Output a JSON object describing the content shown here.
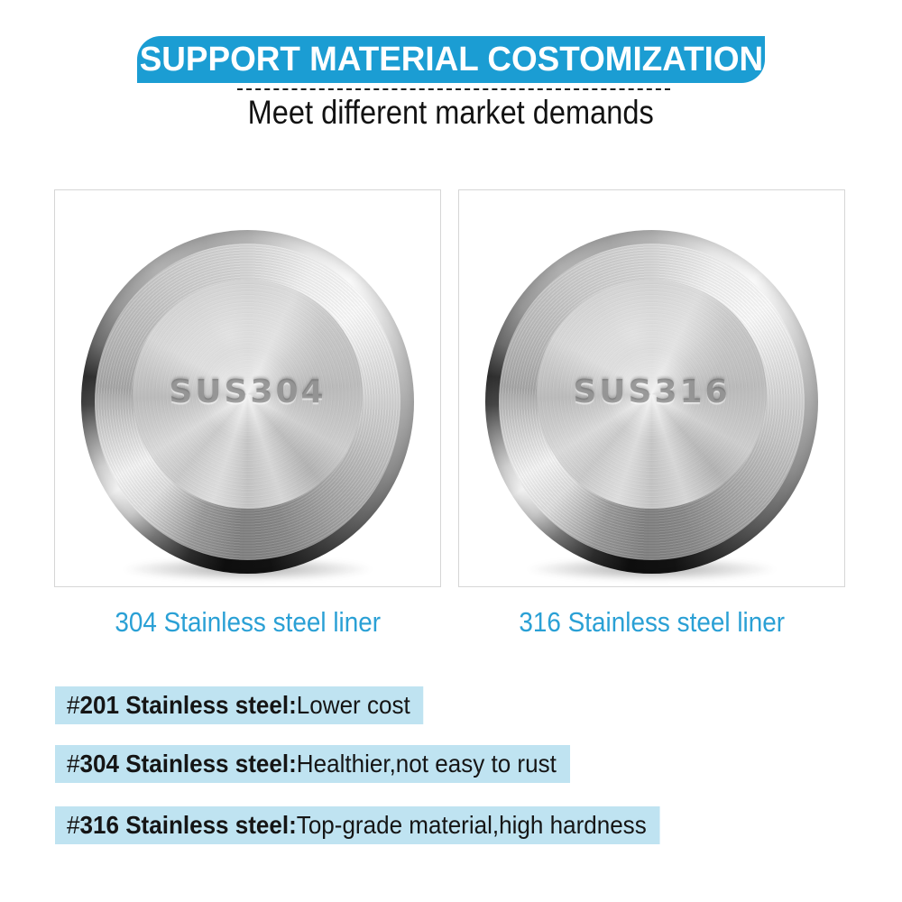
{
  "header": {
    "banner_text": "SUPPORT MATERIAL COSTOMIZATION",
    "banner_bg": "#1b9dd3",
    "banner_text_color": "#ffffff",
    "subtitle": "Meet different market demands",
    "subtitle_color": "#121212"
  },
  "products": [
    {
      "engraving": "SUS304",
      "caption": "304 Stainless steel liner"
    },
    {
      "engraving": "SUS316",
      "caption": "316 Stainless steel liner"
    }
  ],
  "caption_color": "#2aa0d5",
  "notes": [
    {
      "prefix": "# ",
      "bold": "201 Stainless steel:",
      "rest": " Lower cost"
    },
    {
      "prefix": "# ",
      "bold": "304 Stainless steel:",
      "rest": " Healthier,not easy to rust"
    },
    {
      "prefix": "# ",
      "bold": "316 Stainless steel:",
      "rest": " Top-grade material,high hardness"
    }
  ],
  "note_bg": "#bfe3f1"
}
